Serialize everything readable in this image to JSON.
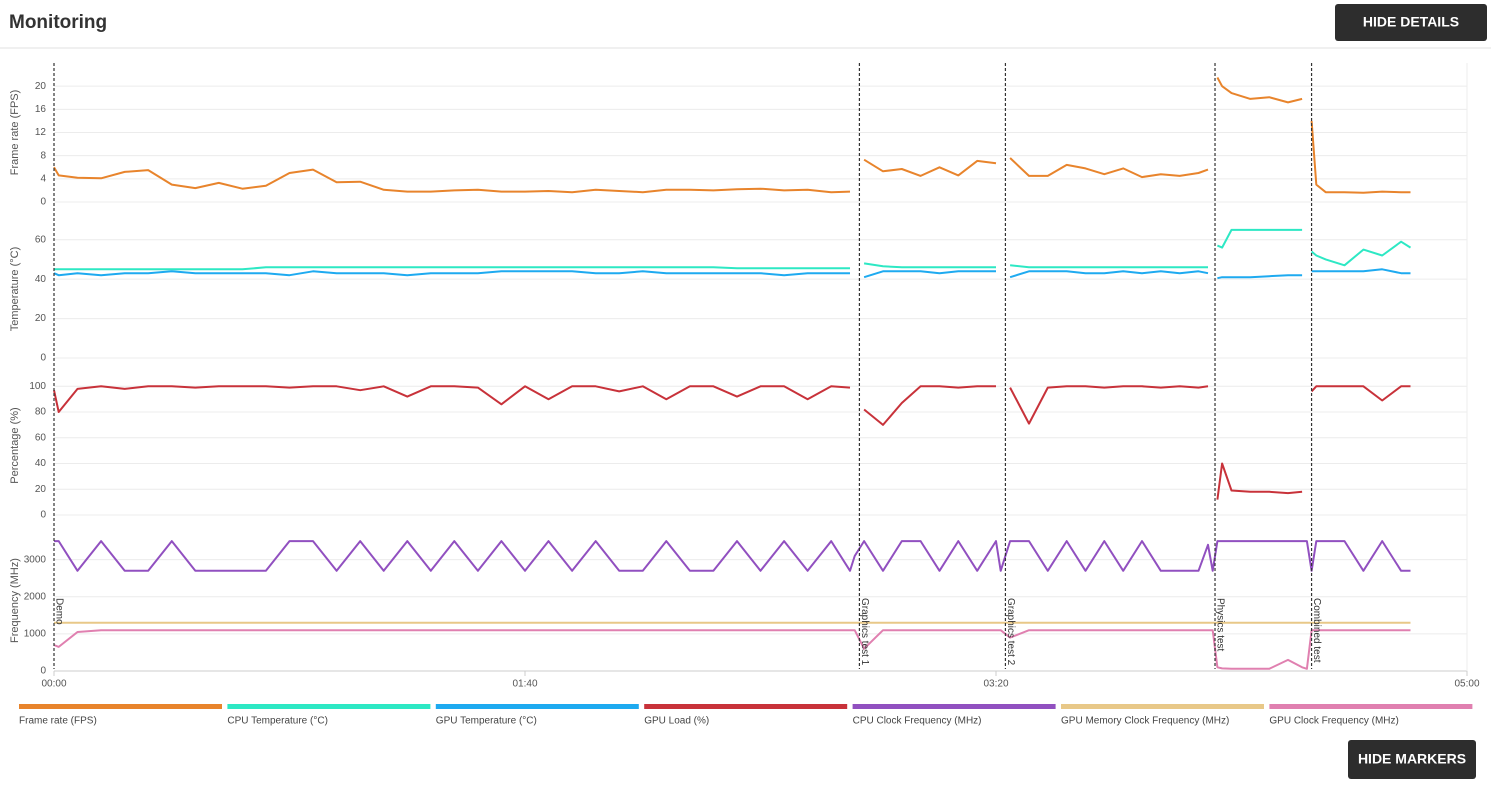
{
  "title": "Monitoring",
  "buttons": [
    "HIDE DETAILS",
    "HIDE MARKERS"
  ],
  "markers": [
    {
      "label": "Demo",
      "x": 0
    },
    {
      "label": "Graphics test 1",
      "x": 171
    },
    {
      "label": "Graphics test 2",
      "x": 202
    },
    {
      "label": "Physics test",
      "x": 246.5
    },
    {
      "label": "Combined test",
      "x": 267
    }
  ],
  "chart_data": [
    {
      "type": "line",
      "y_label": "Frame rate (FPS)",
      "xlim": [
        0,
        300
      ],
      "ylim": [
        0,
        24
      ],
      "yticks": [
        0,
        4,
        8,
        12,
        16,
        20
      ],
      "grid": true,
      "x": [
        0,
        1,
        5,
        10,
        15,
        20,
        25,
        30,
        35,
        40,
        45,
        50,
        55,
        60,
        65,
        70,
        75,
        80,
        85,
        90,
        95,
        100,
        105,
        110,
        115,
        120,
        125,
        130,
        135,
        140,
        145,
        150,
        155,
        160,
        165,
        169,
        170,
        172,
        176,
        180,
        184,
        188,
        192,
        196,
        200,
        201,
        203,
        207,
        211,
        215,
        219,
        223,
        227,
        231,
        235,
        239,
        243,
        245,
        246,
        247,
        248,
        250,
        254,
        258,
        262,
        265,
        266,
        267,
        268,
        270,
        274,
        278,
        282,
        286,
        288
      ],
      "series": [
        {
          "name": "Frame rate (FPS)",
          "color": "#e8842c",
          "values": [
            6,
            4.6,
            4.2,
            4.1,
            5.2,
            5.5,
            3,
            2.4,
            3.3,
            2.3,
            2.8,
            5,
            5.6,
            3.4,
            3.5,
            2.1,
            1.8,
            1.8,
            2,
            2.1,
            1.8,
            1.8,
            1.9,
            1.7,
            2.1,
            1.9,
            1.7,
            2.1,
            2.1,
            2,
            2.2,
            2.3,
            2,
            2.1,
            1.7,
            1.8,
            null,
            7.3,
            5.3,
            5.7,
            4.5,
            6,
            4.6,
            7.1,
            6.7,
            null,
            7.6,
            4.5,
            4.5,
            6.4,
            5.8,
            4.8,
            5.8,
            4.3,
            4.8,
            4.5,
            5,
            5.6,
            null,
            21.5,
            20,
            18.8,
            17.8,
            18.1,
            17.2,
            17.8,
            null,
            14,
            3,
            1.7,
            1.7,
            1.6,
            1.8,
            1.7,
            1.7
          ]
        }
      ]
    },
    {
      "type": "line",
      "y_label": "Temperature (°C)",
      "xlim": [
        0,
        300
      ],
      "ylim": [
        0,
        70
      ],
      "yticks": [
        0,
        20,
        40,
        60
      ],
      "grid": true,
      "x": [
        0,
        1,
        5,
        10,
        15,
        20,
        25,
        30,
        35,
        40,
        45,
        50,
        55,
        60,
        65,
        70,
        75,
        80,
        85,
        90,
        95,
        100,
        105,
        110,
        115,
        120,
        125,
        130,
        135,
        140,
        145,
        150,
        155,
        160,
        165,
        169,
        170,
        172,
        176,
        180,
        184,
        188,
        192,
        196,
        200,
        201,
        203,
        207,
        211,
        215,
        219,
        223,
        227,
        231,
        235,
        239,
        243,
        245,
        246,
        247,
        248,
        250,
        254,
        258,
        262,
        265,
        266,
        267,
        268,
        270,
        274,
        278,
        282,
        286,
        288
      ],
      "series": [
        {
          "name": "CPU Temperature (°C)",
          "color": "#2de8c4",
          "values": [
            45,
            45,
            45,
            45,
            45,
            45,
            45,
            45,
            45,
            45,
            46,
            46,
            46,
            46,
            46,
            46,
            46,
            46,
            46,
            46,
            46,
            46,
            46,
            46,
            46,
            46,
            46,
            46,
            46,
            46,
            45.5,
            45.5,
            45.5,
            45.5,
            45.5,
            45.5,
            null,
            48,
            46.5,
            46,
            46,
            46,
            46,
            46,
            46,
            null,
            47,
            46,
            46,
            46,
            46,
            46,
            46,
            46,
            46,
            46,
            46,
            46,
            null,
            57,
            56,
            65,
            65,
            65,
            65,
            65,
            null,
            54,
            52,
            50,
            47,
            55,
            52,
            59,
            56
          ]
        },
        {
          "name": "GPU Temperature (°C)",
          "color": "#1eaaf0",
          "values": [
            43,
            42,
            43,
            42,
            43,
            43,
            44,
            43,
            43,
            43,
            43,
            42,
            44,
            43,
            43,
            43,
            42,
            43,
            43,
            43,
            44,
            44,
            44,
            44,
            43,
            43,
            44,
            43,
            43,
            43,
            43,
            43,
            42,
            43,
            43,
            43,
            null,
            41,
            44,
            44,
            44,
            43,
            44,
            44,
            44,
            null,
            41,
            44,
            44,
            44,
            43,
            43,
            44,
            43,
            44,
            43,
            44,
            43,
            null,
            40.5,
            41,
            41,
            41,
            41.5,
            42,
            42,
            null,
            44,
            44,
            44,
            44,
            44,
            45,
            43,
            43
          ]
        }
      ]
    },
    {
      "type": "line",
      "y_label": "Percentage (%)",
      "xlim": [
        0,
        300
      ],
      "ylim": [
        0,
        108
      ],
      "yticks": [
        0,
        20,
        40,
        60,
        80,
        100
      ],
      "grid": true,
      "x": [
        0,
        1,
        5,
        10,
        15,
        20,
        25,
        30,
        35,
        40,
        45,
        50,
        55,
        60,
        65,
        70,
        75,
        80,
        85,
        90,
        95,
        100,
        105,
        110,
        115,
        120,
        125,
        130,
        135,
        140,
        145,
        150,
        155,
        160,
        165,
        169,
        170,
        172,
        176,
        180,
        184,
        188,
        192,
        196,
        200,
        201,
        203,
        207,
        211,
        215,
        219,
        223,
        227,
        231,
        235,
        239,
        243,
        245,
        246,
        247,
        248,
        250,
        254,
        258,
        262,
        265,
        266,
        267,
        268,
        270,
        274,
        278,
        282,
        286,
        288
      ],
      "series": [
        {
          "name": "GPU Load (%)",
          "color": "#c8323a",
          "values": [
            97,
            80,
            98,
            100,
            98,
            100,
            100,
            99,
            100,
            100,
            100,
            99,
            100,
            100,
            97,
            100,
            92,
            100,
            100,
            99,
            86,
            100,
            90,
            100,
            100,
            96,
            100,
            90,
            100,
            100,
            92,
            100,
            100,
            90,
            100,
            99,
            null,
            82,
            70,
            87,
            100,
            100,
            99,
            100,
            100,
            null,
            99,
            71,
            99,
            100,
            100,
            99,
            100,
            100,
            99,
            100,
            99,
            100,
            null,
            12,
            40,
            19,
            18,
            18,
            17,
            18,
            null,
            96,
            100,
            100,
            100,
            100,
            89,
            100,
            100
          ]
        }
      ]
    },
    {
      "type": "line",
      "y_label": "Frequency (MHz)",
      "xlim": [
        0,
        300
      ],
      "ylim": [
        0,
        3800
      ],
      "yticks": [
        0,
        1000,
        2000,
        3000
      ],
      "grid": true,
      "xticks": [
        {
          "value": 0,
          "label": "00:00"
        },
        {
          "value": 100,
          "label": "01:40"
        },
        {
          "value": 200,
          "label": "03:20"
        },
        {
          "value": 300,
          "label": "05:00"
        }
      ],
      "x": [
        0,
        1,
        5,
        10,
        15,
        20,
        25,
        30,
        35,
        40,
        45,
        50,
        55,
        60,
        65,
        70,
        75,
        80,
        85,
        90,
        95,
        100,
        105,
        110,
        115,
        120,
        125,
        130,
        135,
        140,
        145,
        150,
        155,
        160,
        165,
        169,
        170,
        172,
        176,
        180,
        184,
        188,
        192,
        196,
        200,
        201,
        203,
        207,
        211,
        215,
        219,
        223,
        227,
        231,
        235,
        239,
        243,
        245,
        246,
        247,
        248,
        250,
        254,
        258,
        262,
        265,
        266,
        267,
        268,
        270,
        274,
        278,
        282,
        286,
        288
      ],
      "series": [
        {
          "name": "CPU Clock Frequency (MHz)",
          "color": "#9150c0",
          "values": [
            3500,
            3500,
            2700,
            3500,
            2700,
            2700,
            3500,
            2700,
            2700,
            2700,
            2700,
            3500,
            3500,
            2700,
            3500,
            2700,
            3500,
            2700,
            3500,
            2700,
            3500,
            2700,
            3500,
            2700,
            3500,
            2700,
            2700,
            3500,
            2700,
            2700,
            3500,
            2700,
            3500,
            2700,
            3500,
            2700,
            3100,
            3500,
            2700,
            3500,
            3500,
            2700,
            3500,
            2700,
            3500,
            2700,
            3500,
            3500,
            2700,
            3500,
            2700,
            3500,
            2700,
            3500,
            2700,
            2700,
            2700,
            3400,
            2700,
            3500,
            3500,
            3500,
            3500,
            3500,
            3500,
            3500,
            3500,
            2700,
            3500,
            3500,
            3500,
            2700,
            3500,
            2700,
            2700
          ]
        },
        {
          "name": "GPU Memory Clock Frequency (MHz)",
          "color": "#e8c888",
          "values": [
            1300,
            1300,
            1300,
            1300,
            1300,
            1300,
            1300,
            1300,
            1300,
            1300,
            1300,
            1300,
            1300,
            1300,
            1300,
            1300,
            1300,
            1300,
            1300,
            1300,
            1300,
            1300,
            1300,
            1300,
            1300,
            1300,
            1300,
            1300,
            1300,
            1300,
            1300,
            1300,
            1300,
            1300,
            1300,
            1300,
            1300,
            1300,
            1300,
            1300,
            1300,
            1300,
            1300,
            1300,
            1300,
            1300,
            1300,
            1300,
            1300,
            1300,
            1300,
            1300,
            1300,
            1300,
            1300,
            1300,
            1300,
            1300,
            1300,
            1300,
            1300,
            1300,
            1300,
            1300,
            1300,
            1300,
            1300,
            1300,
            1300,
            1300,
            1300,
            1300,
            1300,
            1300,
            1300
          ]
        },
        {
          "name": "GPU Clock Frequency (MHz)",
          "color": "#e080b0",
          "values": [
            700,
            650,
            1050,
            1100,
            1100,
            1100,
            1100,
            1100,
            1100,
            1100,
            1100,
            1100,
            1100,
            1100,
            1100,
            1100,
            1100,
            1100,
            1100,
            1100,
            1100,
            1100,
            1100,
            1100,
            1100,
            1100,
            1100,
            1100,
            1100,
            1100,
            1100,
            1100,
            1100,
            1100,
            1100,
            1100,
            1100,
            600,
            1100,
            1100,
            1100,
            1100,
            1100,
            1100,
            1100,
            1100,
            900,
            1100,
            1100,
            1100,
            1100,
            1100,
            1100,
            1100,
            1100,
            1100,
            1100,
            1100,
            1100,
            100,
            70,
            60,
            60,
            60,
            300,
            100,
            60,
            1100,
            1100,
            1100,
            1100,
            1100,
            1100,
            1100,
            1100
          ]
        }
      ]
    }
  ]
}
